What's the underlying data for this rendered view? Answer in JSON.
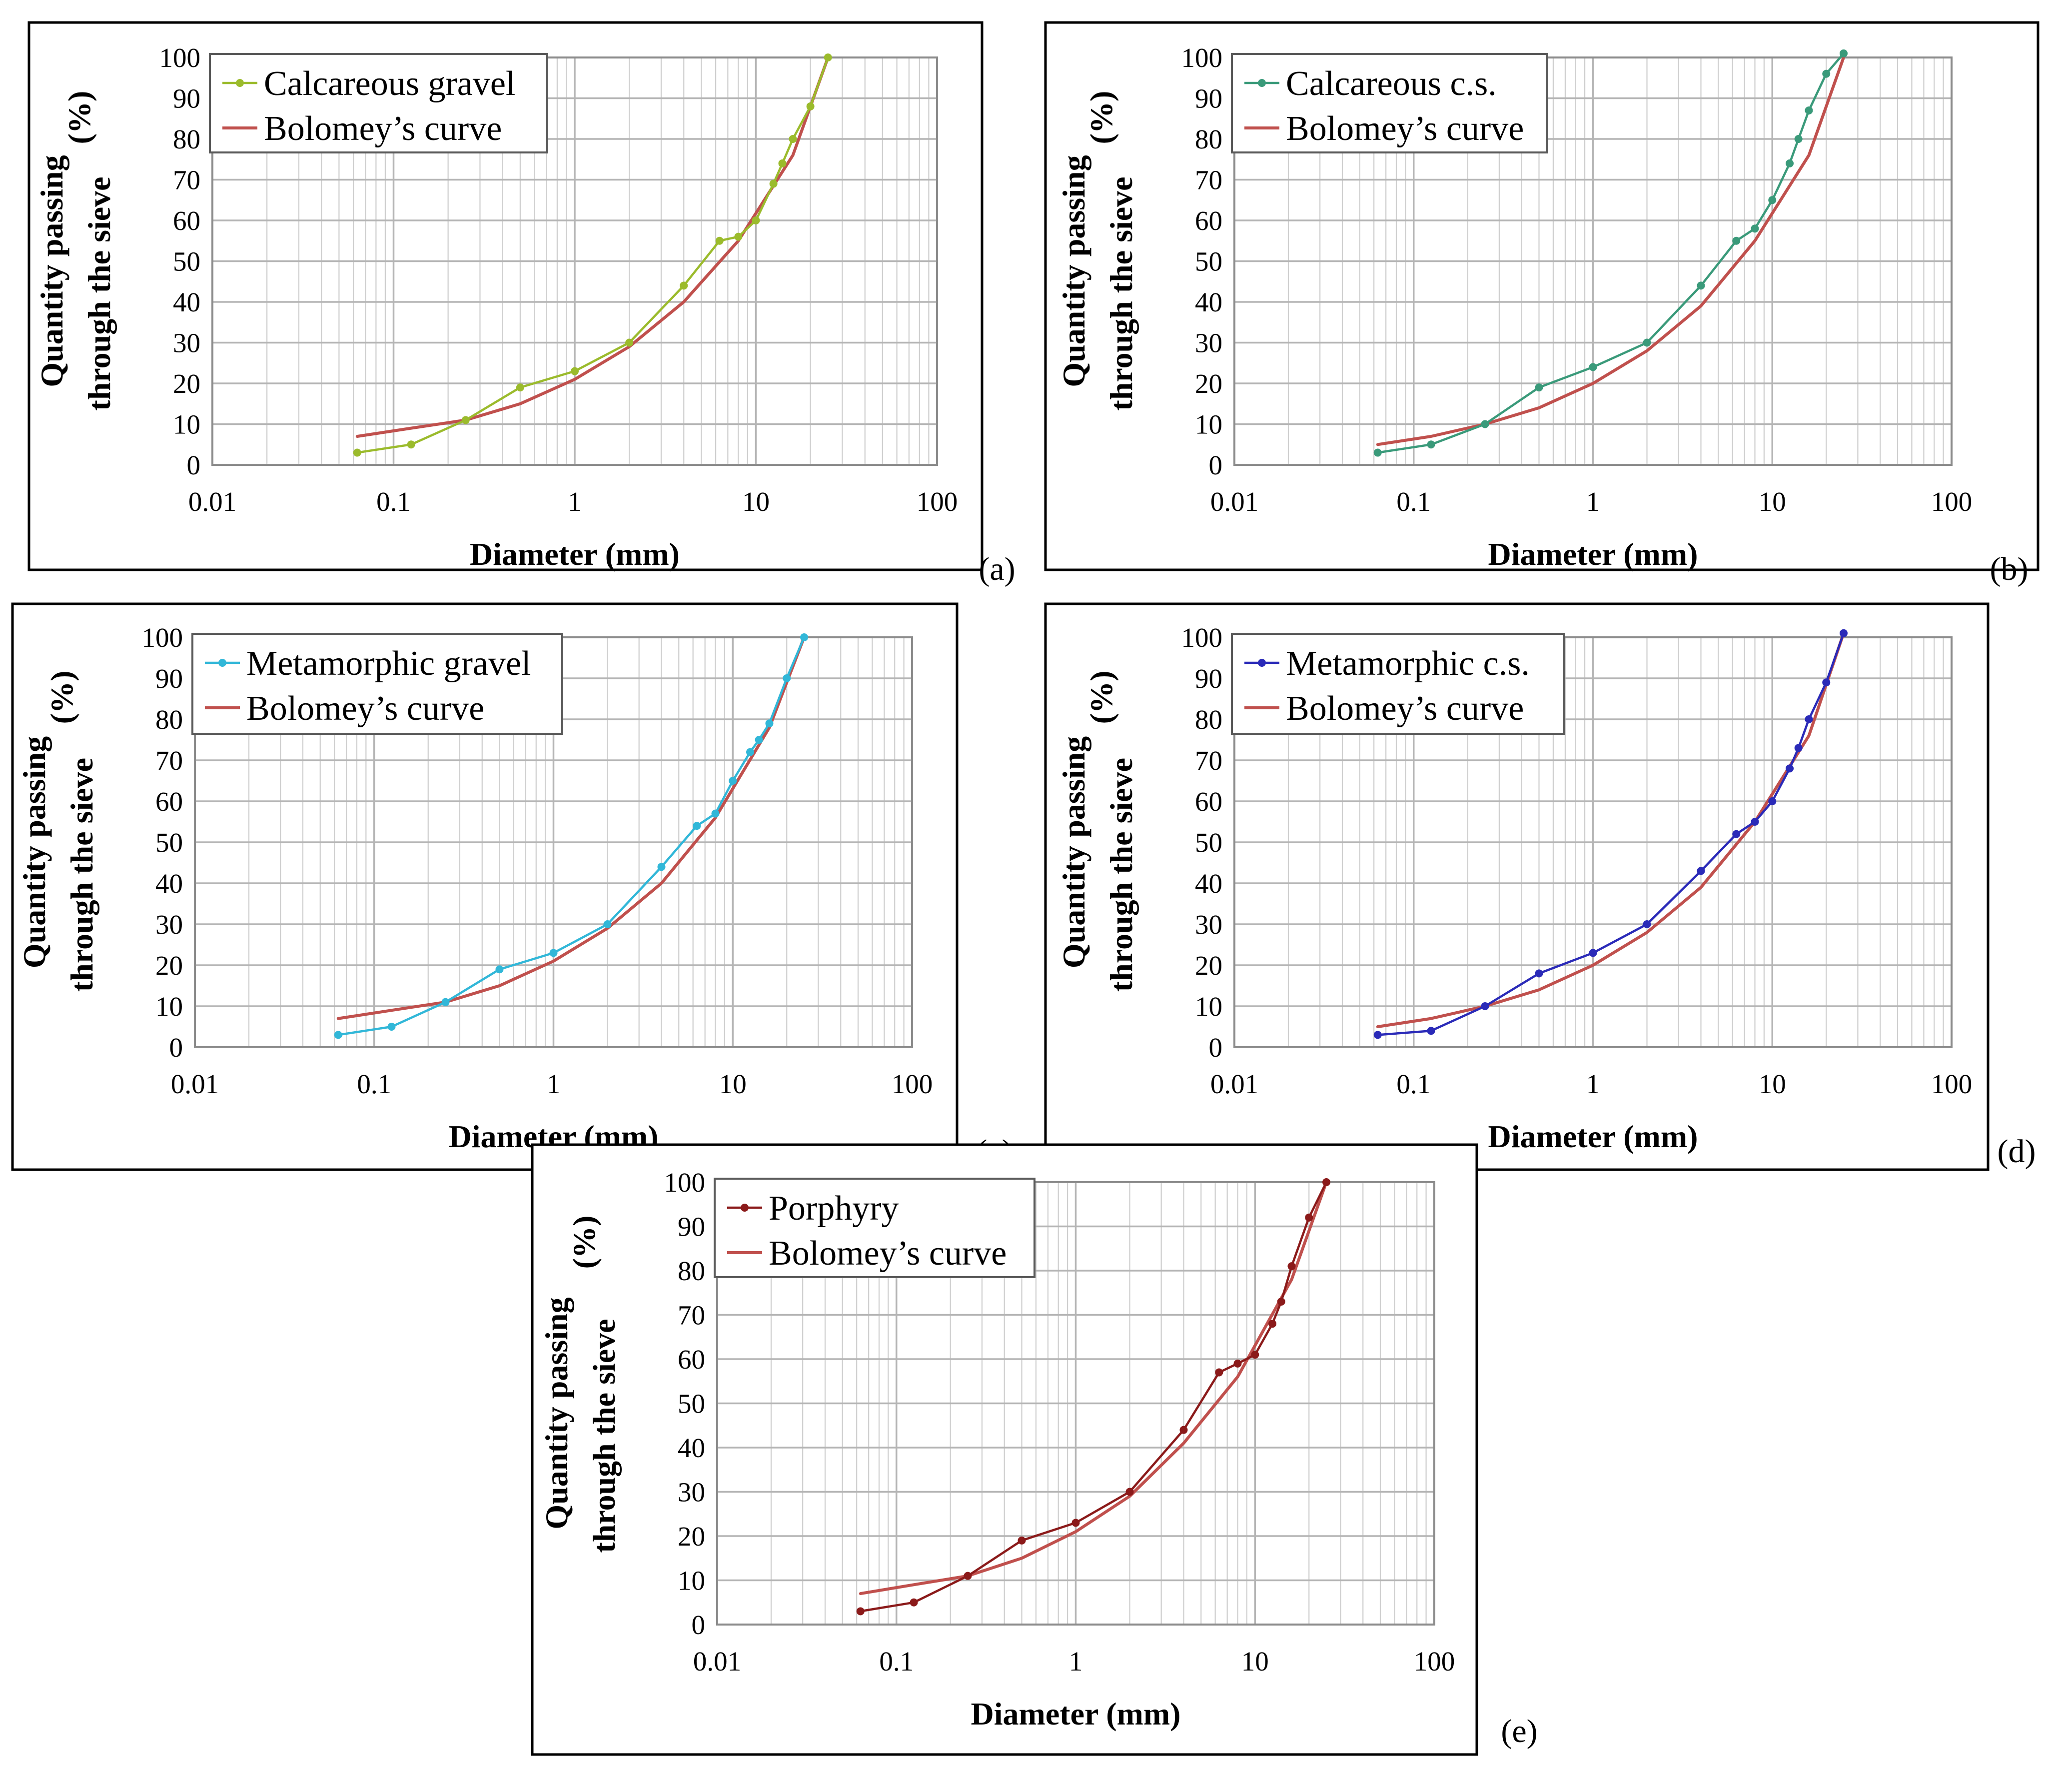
{
  "figure": {
    "x_axis_label": "Diameter (mm)",
    "y_axis_label_line1": "Quantity passing",
    "y_axis_label_line2": "through the sieve",
    "y_axis_unit": "(%)",
    "x_tick_labels": [
      "0.01",
      "0.1",
      "1",
      "10",
      "100"
    ],
    "y_tick_labels": [
      "0",
      "10",
      "20",
      "30",
      "40",
      "50",
      "60",
      "70",
      "80",
      "90",
      "100"
    ],
    "bolomey_color": "#c0504d"
  },
  "chart_data": [
    {
      "panel_label": "(a)",
      "type": "line",
      "xscale": "log",
      "xlim": [
        0.01,
        100
      ],
      "ylim": [
        0,
        100
      ],
      "xlabel": "Diameter (mm)",
      "ylabel": "Quantity passing through the sieve (%)",
      "legend_position": "top-left",
      "series": [
        {
          "name": "Calcareous gravel",
          "color": "#9bbb2c",
          "markers": true,
          "x": [
            0.063,
            0.125,
            0.25,
            0.5,
            1,
            2,
            4,
            6.3,
            8,
            10,
            12.5,
            14,
            16,
            20,
            25
          ],
          "y": [
            3,
            5,
            11,
            19,
            23,
            30,
            44,
            55,
            56,
            60,
            69,
            74,
            80,
            88,
            100
          ]
        },
        {
          "name": "Bolomey’s curve",
          "color": "#c0504d",
          "markers": false,
          "x": [
            0.063,
            0.125,
            0.25,
            0.5,
            1,
            2,
            4,
            8,
            16,
            25
          ],
          "y": [
            7,
            9,
            11,
            15,
            21,
            29,
            40,
            55,
            76,
            100
          ]
        }
      ]
    },
    {
      "panel_label": "(b)",
      "type": "line",
      "xscale": "log",
      "xlim": [
        0.01,
        100
      ],
      "ylim": [
        0,
        100
      ],
      "xlabel": "Diameter (mm)",
      "ylabel": "Quantity passing through the sieve (%)",
      "legend_position": "top-left",
      "series": [
        {
          "name": "Calcareous c.s.",
          "color": "#3a9a7a",
          "markers": true,
          "x": [
            0.063,
            0.125,
            0.25,
            0.5,
            1,
            2,
            4,
            6.3,
            8,
            10,
            12.5,
            14,
            16,
            20,
            25
          ],
          "y": [
            3,
            5,
            10,
            19,
            24,
            30,
            44,
            55,
            58,
            65,
            74,
            80,
            87,
            96,
            101
          ]
        },
        {
          "name": "Bolomey’s curve",
          "color": "#c0504d",
          "markers": false,
          "x": [
            0.063,
            0.125,
            0.25,
            0.5,
            1,
            2,
            4,
            8,
            16,
            25
          ],
          "y": [
            5,
            7,
            10,
            14,
            20,
            28,
            39,
            55,
            76,
            100
          ]
        }
      ]
    },
    {
      "panel_label": "(c)",
      "type": "line",
      "xscale": "log",
      "xlim": [
        0.01,
        100
      ],
      "ylim": [
        0,
        100
      ],
      "xlabel": "Diameter (mm)",
      "ylabel": "Quantity passing through the sieve (%)",
      "legend_position": "top-left",
      "series": [
        {
          "name": "Metamorphic gravel",
          "color": "#31b7d8",
          "markers": true,
          "x": [
            0.063,
            0.125,
            0.25,
            0.5,
            1,
            2,
            4,
            6.3,
            8,
            10,
            12.5,
            14,
            16,
            20,
            25
          ],
          "y": [
            3,
            5,
            11,
            19,
            23,
            30,
            44,
            54,
            57,
            65,
            72,
            75,
            79,
            90,
            100
          ]
        },
        {
          "name": "Bolomey’s curve",
          "color": "#c0504d",
          "markers": false,
          "x": [
            0.063,
            0.125,
            0.25,
            0.5,
            1,
            2,
            4,
            8,
            16,
            25
          ],
          "y": [
            7,
            9,
            11,
            15,
            21,
            29,
            40,
            56,
            78,
            100
          ]
        }
      ]
    },
    {
      "panel_label": "(d)",
      "type": "line",
      "xscale": "log",
      "xlim": [
        0.01,
        100
      ],
      "ylim": [
        0,
        100
      ],
      "xlabel": "Diameter (mm)",
      "ylabel": "Quantity passing through the sieve (%)",
      "legend_position": "top-left",
      "series": [
        {
          "name": "Metamorphic c.s.",
          "color": "#2a2ab8",
          "markers": true,
          "x": [
            0.063,
            0.125,
            0.25,
            0.5,
            1,
            2,
            4,
            6.3,
            8,
            10,
            12.5,
            14,
            16,
            20,
            25
          ],
          "y": [
            3,
            4,
            10,
            18,
            23,
            30,
            43,
            52,
            55,
            60,
            68,
            73,
            80,
            89,
            101
          ]
        },
        {
          "name": "Bolomey’s curve",
          "color": "#c0504d",
          "markers": false,
          "x": [
            0.063,
            0.125,
            0.25,
            0.5,
            1,
            2,
            4,
            8,
            16,
            25
          ],
          "y": [
            5,
            7,
            10,
            14,
            20,
            28,
            39,
            55,
            76,
            101
          ]
        }
      ]
    },
    {
      "panel_label": "(e)",
      "type": "line",
      "xscale": "log",
      "xlim": [
        0.01,
        100
      ],
      "ylim": [
        0,
        100
      ],
      "xlabel": "Diameter (mm)",
      "ylabel": "Quantity passing through the sieve (%)",
      "legend_position": "top-left",
      "series": [
        {
          "name": "Porphyry",
          "color": "#8b1a1a",
          "markers": true,
          "x": [
            0.063,
            0.125,
            0.25,
            0.5,
            1,
            2,
            4,
            6.3,
            8,
            10,
            12.5,
            14,
            16,
            20,
            25
          ],
          "y": [
            3,
            5,
            11,
            19,
            23,
            30,
            44,
            57,
            59,
            61,
            68,
            73,
            81,
            92,
            100
          ]
        },
        {
          "name": "Bolomey’s curve",
          "color": "#c0504d",
          "markers": false,
          "x": [
            0.063,
            0.125,
            0.25,
            0.5,
            1,
            2,
            4,
            8,
            16,
            25
          ],
          "y": [
            7,
            9,
            11,
            15,
            21,
            29,
            41,
            56,
            78,
            100
          ]
        }
      ]
    }
  ]
}
